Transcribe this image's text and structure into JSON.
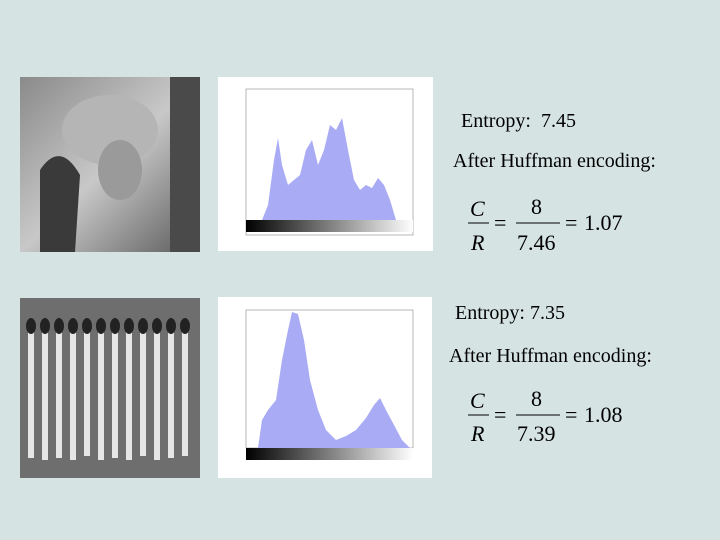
{
  "rows": [
    {
      "entropy": "Entropy:  7.45",
      "caption": "After Huffman encoding:",
      "formula": {
        "top_left": "C",
        "bottom_left": "R",
        "eq1": "=",
        "numerator": "8",
        "denominator": "7.46",
        "eq2": "=",
        "result": "1.07"
      }
    },
    {
      "entropy": "Entropy: 7.35",
      "caption": "After Huffman encoding:",
      "formula": {
        "top_left": "C",
        "bottom_left": "R",
        "eq1": "=",
        "numerator": "8",
        "denominator": "7.39",
        "eq2": "=",
        "result": "1.08"
      }
    }
  ]
}
